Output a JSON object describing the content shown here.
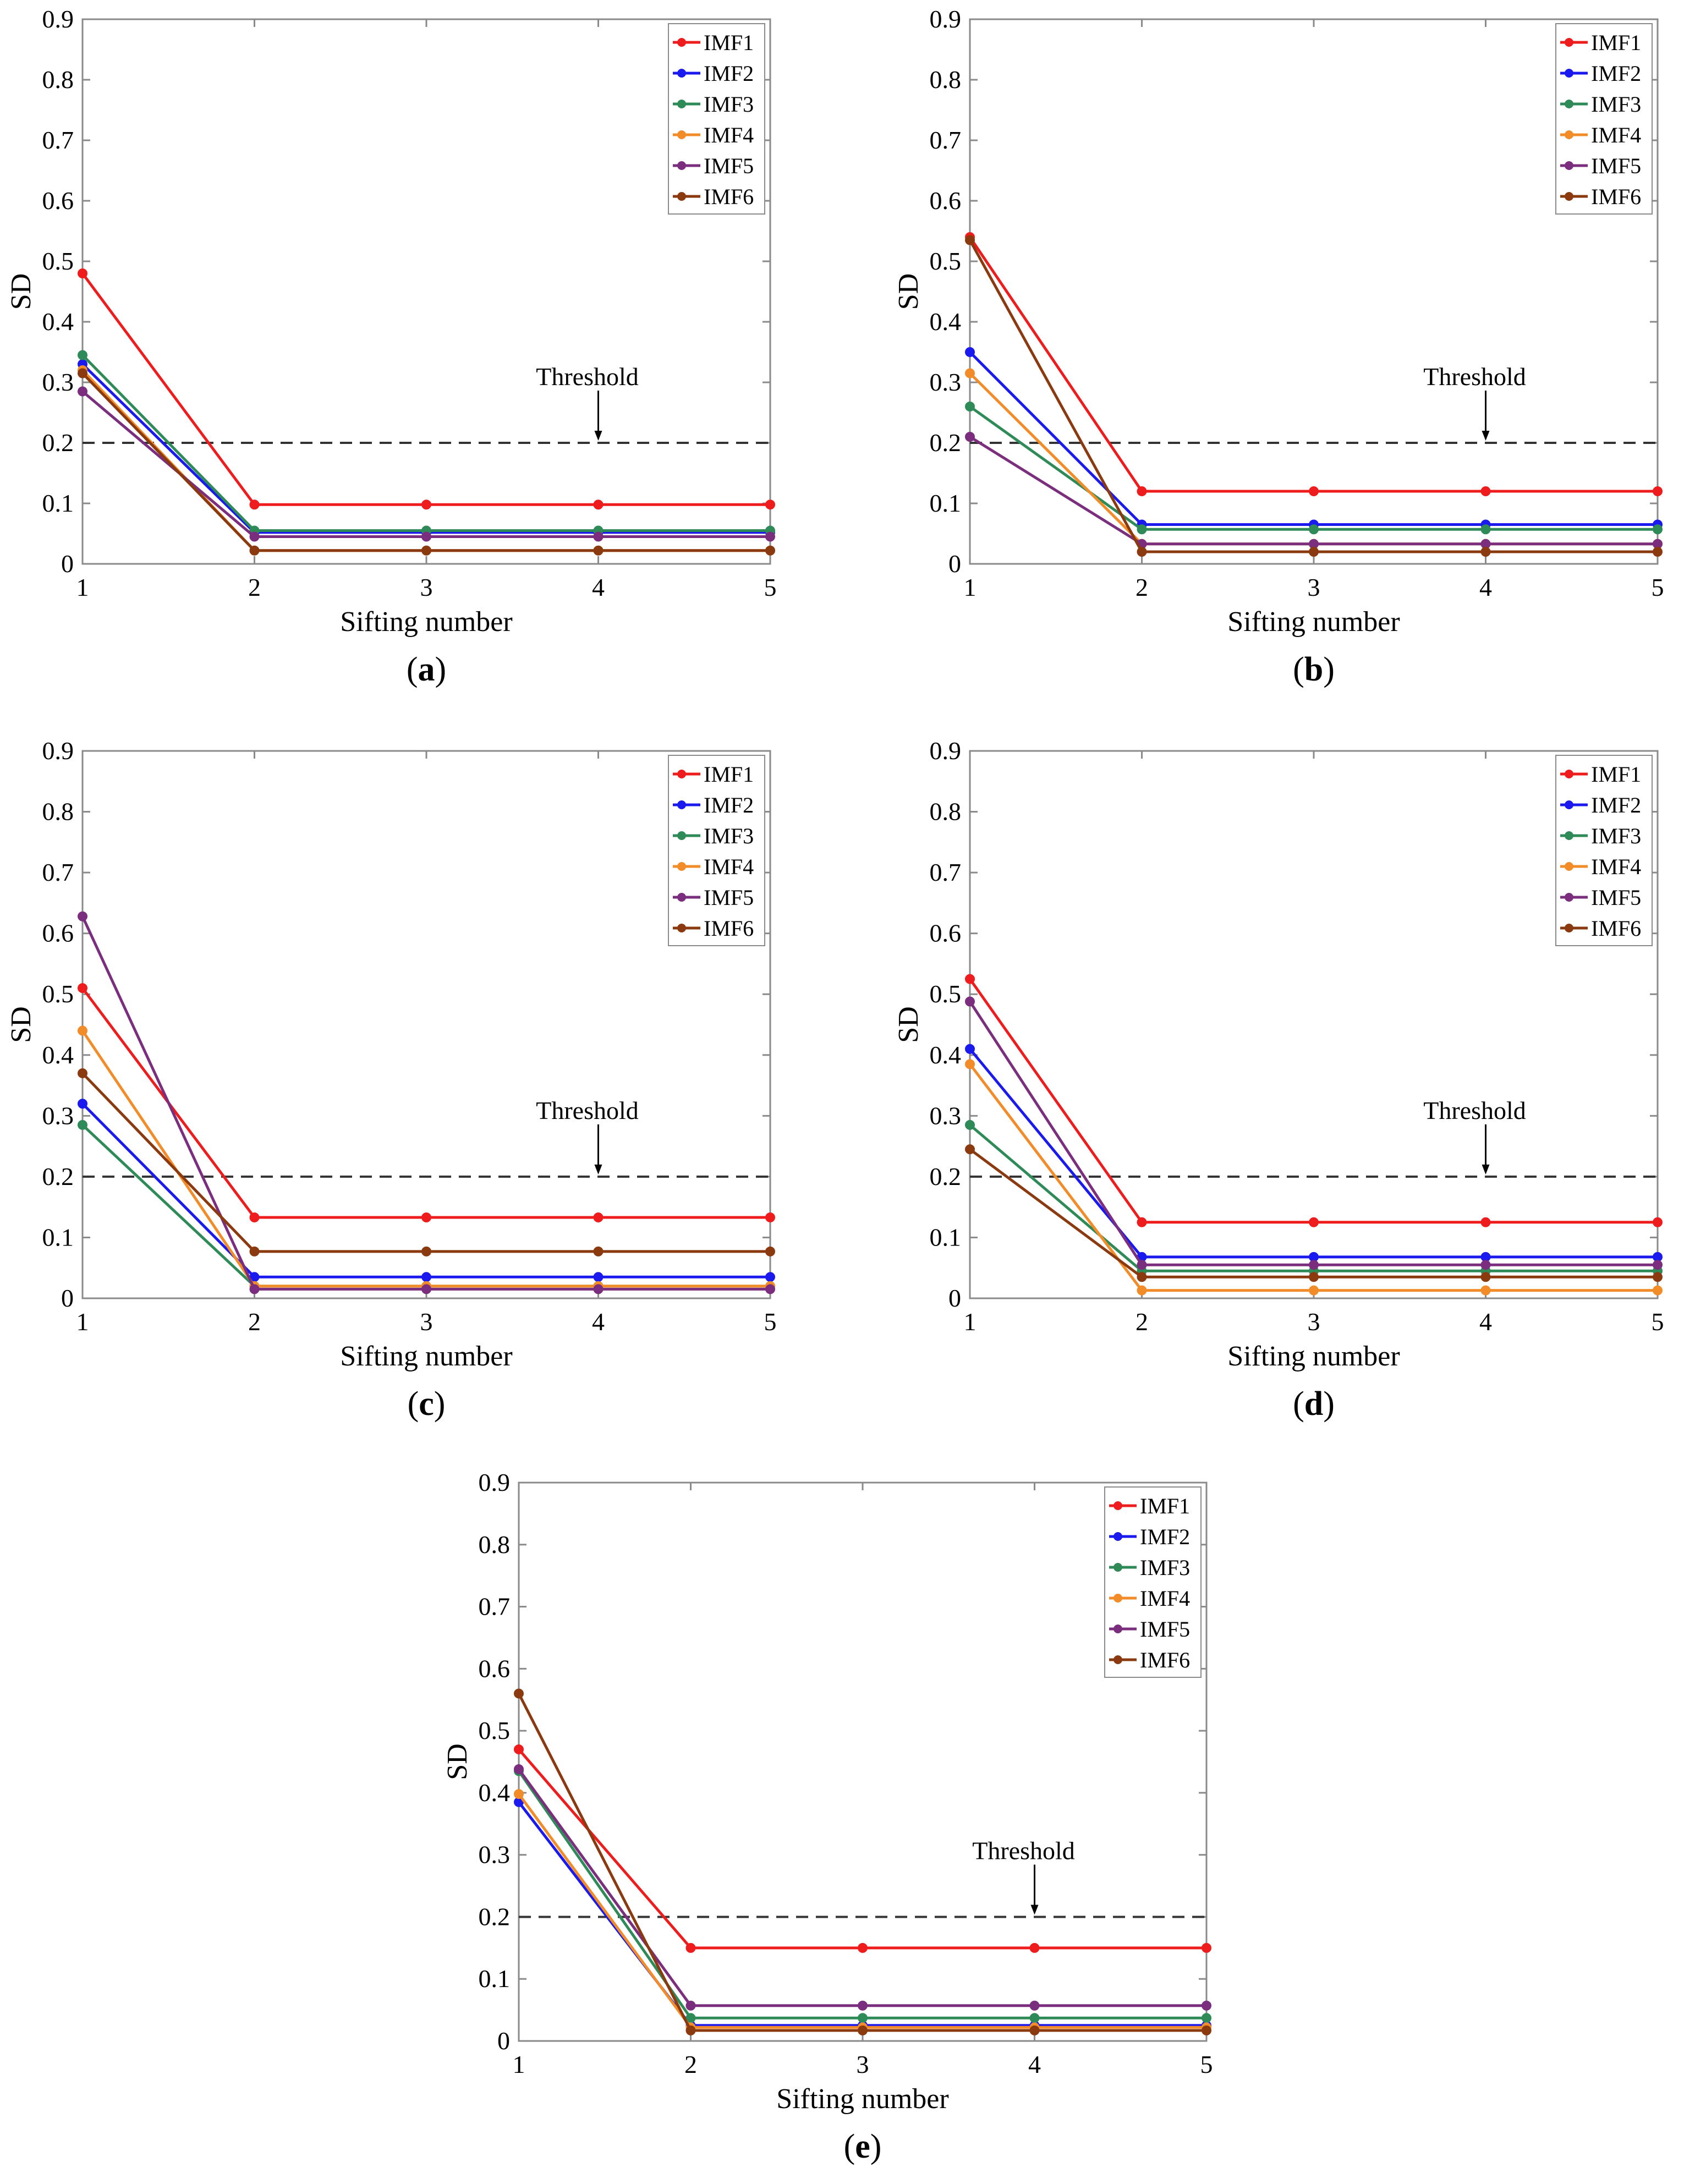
{
  "chart_data": [
    {
      "id": "a",
      "type": "line",
      "caption": "(a)",
      "caption_letter": "a",
      "xlabel": "Sifting number",
      "ylabel": "SD",
      "x": [
        1,
        2,
        3,
        4,
        5
      ],
      "xticks": [
        "1",
        "2",
        "3",
        "4",
        "5"
      ],
      "ylim": [
        0,
        0.9
      ],
      "yticks": [
        "0",
        "0.1",
        "0.2",
        "0.3",
        "0.4",
        "0.5",
        "0.6",
        "0.7",
        "0.8",
        "0.9"
      ],
      "grid": false,
      "legend_position": "top-right",
      "threshold": {
        "value": 0.2,
        "label": "Threshold",
        "arrow_x": 4
      },
      "series": [
        {
          "name": "IMF1",
          "color": "#ee1c1c",
          "values": [
            0.48,
            0.098,
            0.098,
            0.098,
            0.098
          ]
        },
        {
          "name": "IMF2",
          "color": "#1a1aee",
          "values": [
            0.33,
            0.052,
            0.052,
            0.052,
            0.052
          ]
        },
        {
          "name": "IMF3",
          "color": "#2e8b57",
          "values": [
            0.345,
            0.055,
            0.055,
            0.055,
            0.055
          ]
        },
        {
          "name": "IMF4",
          "color": "#f28c28",
          "values": [
            0.32,
            0.022,
            0.022,
            0.022,
            0.022
          ]
        },
        {
          "name": "IMF5",
          "color": "#7b2d7e",
          "values": [
            0.285,
            0.045,
            0.045,
            0.045,
            0.045
          ]
        },
        {
          "name": "IMF6",
          "color": "#8b3a0f",
          "values": [
            0.315,
            0.022,
            0.022,
            0.022,
            0.022
          ]
        }
      ]
    },
    {
      "id": "b",
      "type": "line",
      "caption": "(b)",
      "caption_letter": "b",
      "xlabel": "Sifting number",
      "ylabel": "SD",
      "x": [
        1,
        2,
        3,
        4,
        5
      ],
      "xticks": [
        "1",
        "2",
        "3",
        "4",
        "5"
      ],
      "ylim": [
        0,
        0.9
      ],
      "yticks": [
        "0",
        "0.1",
        "0.2",
        "0.3",
        "0.4",
        "0.5",
        "0.6",
        "0.7",
        "0.8",
        "0.9"
      ],
      "grid": false,
      "legend_position": "top-right",
      "threshold": {
        "value": 0.2,
        "label": "Threshold",
        "arrow_x": 4
      },
      "series": [
        {
          "name": "IMF1",
          "color": "#ee1c1c",
          "values": [
            0.54,
            0.12,
            0.12,
            0.12,
            0.12
          ]
        },
        {
          "name": "IMF2",
          "color": "#1a1aee",
          "values": [
            0.35,
            0.065,
            0.065,
            0.065,
            0.065
          ]
        },
        {
          "name": "IMF3",
          "color": "#2e8b57",
          "values": [
            0.26,
            0.057,
            0.057,
            0.057,
            0.057
          ]
        },
        {
          "name": "IMF4",
          "color": "#f28c28",
          "values": [
            0.315,
            0.033,
            0.033,
            0.033,
            0.033
          ]
        },
        {
          "name": "IMF5",
          "color": "#7b2d7e",
          "values": [
            0.21,
            0.033,
            0.033,
            0.033,
            0.033
          ]
        },
        {
          "name": "IMF6",
          "color": "#8b3a0f",
          "values": [
            0.535,
            0.02,
            0.02,
            0.02,
            0.02
          ]
        }
      ]
    },
    {
      "id": "c",
      "type": "line",
      "caption": "(c)",
      "caption_letter": "c",
      "xlabel": "Sifting number",
      "ylabel": "SD",
      "x": [
        1,
        2,
        3,
        4,
        5
      ],
      "xticks": [
        "1",
        "2",
        "3",
        "4",
        "5"
      ],
      "ylim": [
        0,
        0.9
      ],
      "yticks": [
        "0",
        "0.1",
        "0.2",
        "0.3",
        "0.4",
        "0.5",
        "0.6",
        "0.7",
        "0.8",
        "0.9"
      ],
      "grid": false,
      "legend_position": "top-right",
      "threshold": {
        "value": 0.2,
        "label": "Threshold",
        "arrow_x": 4
      },
      "series": [
        {
          "name": "IMF1",
          "color": "#ee1c1c",
          "values": [
            0.51,
            0.133,
            0.133,
            0.133,
            0.133
          ]
        },
        {
          "name": "IMF2",
          "color": "#1a1aee",
          "values": [
            0.32,
            0.035,
            0.035,
            0.035,
            0.035
          ]
        },
        {
          "name": "IMF3",
          "color": "#2e8b57",
          "values": [
            0.285,
            0.02,
            0.02,
            0.02,
            0.02
          ]
        },
        {
          "name": "IMF4",
          "color": "#f28c28",
          "values": [
            0.44,
            0.02,
            0.02,
            0.02,
            0.02
          ]
        },
        {
          "name": "IMF5",
          "color": "#7b2d7e",
          "values": [
            0.628,
            0.015,
            0.015,
            0.015,
            0.015
          ]
        },
        {
          "name": "IMF6",
          "color": "#8b3a0f",
          "values": [
            0.37,
            0.077,
            0.077,
            0.077,
            0.077
          ]
        }
      ]
    },
    {
      "id": "d",
      "type": "line",
      "caption": "(d)",
      "caption_letter": "d",
      "xlabel": "Sifting number",
      "ylabel": "SD",
      "x": [
        1,
        2,
        3,
        4,
        5
      ],
      "xticks": [
        "1",
        "2",
        "3",
        "4",
        "5"
      ],
      "ylim": [
        0,
        0.9
      ],
      "yticks": [
        "0",
        "0.1",
        "0.2",
        "0.3",
        "0.4",
        "0.5",
        "0.6",
        "0.7",
        "0.8",
        "0.9"
      ],
      "grid": false,
      "legend_position": "top-right",
      "threshold": {
        "value": 0.2,
        "label": "Threshold",
        "arrow_x": 4
      },
      "series": [
        {
          "name": "IMF1",
          "color": "#ee1c1c",
          "values": [
            0.525,
            0.125,
            0.125,
            0.125,
            0.125
          ]
        },
        {
          "name": "IMF2",
          "color": "#1a1aee",
          "values": [
            0.41,
            0.068,
            0.068,
            0.068,
            0.068
          ]
        },
        {
          "name": "IMF3",
          "color": "#2e8b57",
          "values": [
            0.285,
            0.045,
            0.045,
            0.045,
            0.045
          ]
        },
        {
          "name": "IMF4",
          "color": "#f28c28",
          "values": [
            0.385,
            0.013,
            0.013,
            0.013,
            0.013
          ]
        },
        {
          "name": "IMF5",
          "color": "#7b2d7e",
          "values": [
            0.488,
            0.055,
            0.055,
            0.055,
            0.055
          ]
        },
        {
          "name": "IMF6",
          "color": "#8b3a0f",
          "values": [
            0.245,
            0.035,
            0.035,
            0.035,
            0.035
          ]
        }
      ]
    },
    {
      "id": "e",
      "type": "line",
      "caption": "(e)",
      "caption_letter": "e",
      "xlabel": "Sifting number",
      "ylabel": "SD",
      "x": [
        1,
        2,
        3,
        4,
        5
      ],
      "xticks": [
        "1",
        "2",
        "3",
        "4",
        "5"
      ],
      "ylim": [
        0,
        0.9
      ],
      "yticks": [
        "0",
        "0.1",
        "0.2",
        "0.3",
        "0.4",
        "0.5",
        "0.6",
        "0.7",
        "0.8",
        "0.9"
      ],
      "grid": false,
      "legend_position": "top-right",
      "threshold": {
        "value": 0.2,
        "label": "Threshold",
        "arrow_x": 4
      },
      "series": [
        {
          "name": "IMF1",
          "color": "#ee1c1c",
          "values": [
            0.47,
            0.15,
            0.15,
            0.15,
            0.15
          ]
        },
        {
          "name": "IMF2",
          "color": "#1a1aee",
          "values": [
            0.385,
            0.025,
            0.025,
            0.025,
            0.025
          ]
        },
        {
          "name": "IMF3",
          "color": "#2e8b57",
          "values": [
            0.435,
            0.037,
            0.037,
            0.037,
            0.037
          ]
        },
        {
          "name": "IMF4",
          "color": "#f28c28",
          "values": [
            0.398,
            0.022,
            0.022,
            0.022,
            0.022
          ]
        },
        {
          "name": "IMF5",
          "color": "#7b2d7e",
          "values": [
            0.438,
            0.057,
            0.057,
            0.057,
            0.057
          ]
        },
        {
          "name": "IMF6",
          "color": "#8b3a0f",
          "values": [
            0.56,
            0.017,
            0.017,
            0.017,
            0.017
          ]
        }
      ]
    }
  ]
}
